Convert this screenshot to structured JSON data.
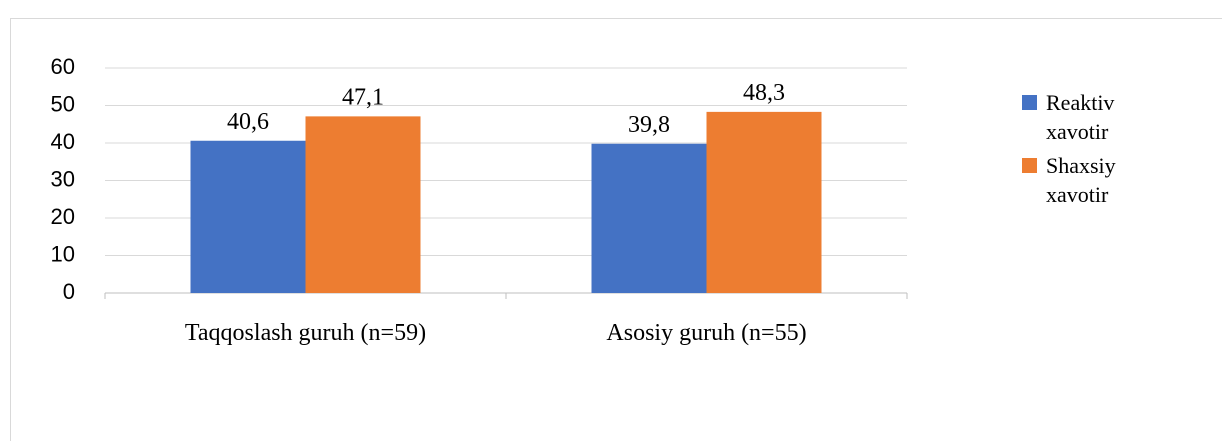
{
  "chart_data": {
    "type": "bar",
    "categories": [
      "Taqqoslash guruh (n=59)",
      "Asosiy guruh (n=55)"
    ],
    "series": [
      {
        "name": "Reaktiv xavotir",
        "color": "#4472c4",
        "values": [
          40.6,
          39.8
        ],
        "value_labels": [
          "40,6",
          "39,8"
        ]
      },
      {
        "name": "Shaxsiy xavotir",
        "color": "#ed7d31",
        "values": [
          47.1,
          48.3
        ],
        "value_labels": [
          "47,1",
          "48,3"
        ]
      }
    ],
    "ylim": [
      0,
      60
    ],
    "yticks": [
      0,
      10,
      20,
      30,
      40,
      50,
      60
    ],
    "grid": true,
    "legend": "right"
  }
}
